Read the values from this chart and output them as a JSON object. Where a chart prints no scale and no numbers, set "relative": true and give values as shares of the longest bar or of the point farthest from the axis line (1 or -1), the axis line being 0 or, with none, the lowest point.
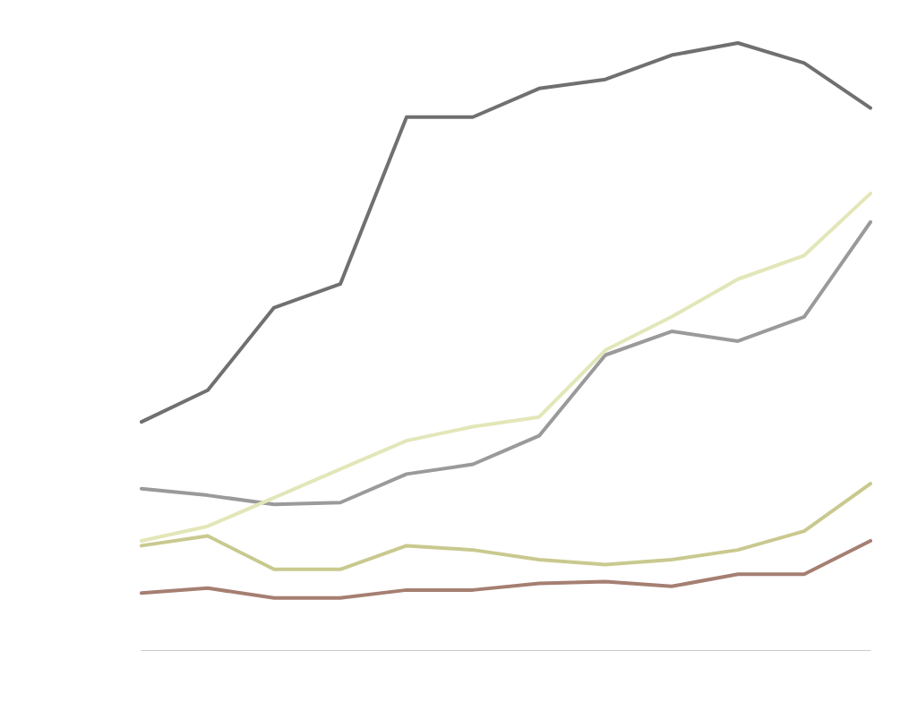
{
  "chart_data": {
    "type": "line",
    "relative": true,
    "categories": [
      null,
      null,
      null,
      null,
      null,
      null,
      null,
      null,
      null,
      null,
      null,
      null
    ],
    "series": [
      {
        "color": "#707070",
        "values": [
          0.376,
          0.428,
          0.564,
          0.603,
          0.878,
          0.878,
          0.925,
          0.94,
          0.98,
          1,
          0.967,
          0.893
        ]
      },
      {
        "color": "#9a9a9a",
        "values": [
          0.266,
          0.255,
          0.24,
          0.243,
          0.29,
          0.306,
          0.353,
          0.486,
          0.525,
          0.509,
          0.549,
          0.705
        ]
      },
      {
        "color": "#e3e6b8",
        "values": [
          0.18,
          0.204,
          0.251,
          0.298,
          0.345,
          0.368,
          0.384,
          0.494,
          0.549,
          0.611,
          0.65,
          0.752
        ]
      },
      {
        "color": "#c9c98f",
        "values": [
          0.172,
          0.188,
          0.133,
          0.133,
          0.172,
          0.165,
          0.149,
          0.141,
          0.149,
          0.165,
          0.196,
          0.274
        ]
      },
      {
        "color": "#a57f72",
        "values": [
          0.094,
          0.102,
          0.086,
          0.086,
          0.099,
          0.099,
          0.11,
          0.113,
          0.105,
          0.125,
          0.125,
          0.18
        ]
      }
    ],
    "marker": "none",
    "line_style": "solid"
  }
}
